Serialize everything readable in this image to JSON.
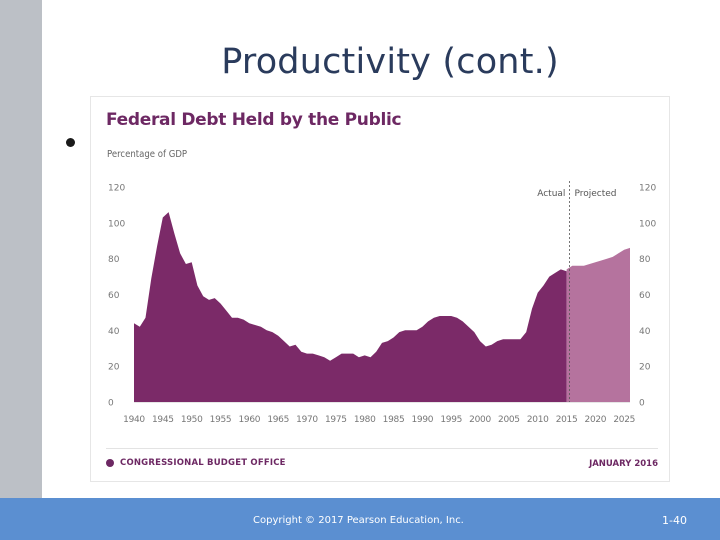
{
  "slide": {
    "title": "Productivity (cont.)",
    "copyright": "Copyright © 2017 Pearson Education, Inc.",
    "slide_number": "1-40"
  },
  "colors": {
    "actual_fill": "#7b2a68",
    "projected_fill": "#b5739e",
    "brand": "#6d2863",
    "footer_bar": "#5b8fd1"
  },
  "chart_data": {
    "type": "area",
    "title": "Federal Debt Held by the Public",
    "ylabel": "Percentage of GDP",
    "xlim": [
      1940,
      2026
    ],
    "ylim": [
      0,
      120
    ],
    "y_ticks": [
      0,
      20,
      40,
      60,
      80,
      100,
      120
    ],
    "x_ticks": [
      1940,
      1945,
      1950,
      1955,
      1960,
      1965,
      1970,
      1975,
      1980,
      1985,
      1990,
      1995,
      2000,
      2005,
      2010,
      2015,
      2020,
      2025
    ],
    "divider_year": 2015.5,
    "annotations": {
      "actual": "Actual",
      "projected": "Projected"
    },
    "source": "CONGRESSIONAL BUDGET OFFICE",
    "date": "JANUARY 2016",
    "series": [
      {
        "name": "Actual",
        "x": [
          1940,
          1941,
          1942,
          1943,
          1944,
          1945,
          1946,
          1947,
          1948,
          1949,
          1950,
          1951,
          1952,
          1953,
          1954,
          1955,
          1956,
          1957,
          1958,
          1959,
          1960,
          1961,
          1962,
          1963,
          1964,
          1965,
          1966,
          1967,
          1968,
          1969,
          1970,
          1971,
          1972,
          1973,
          1974,
          1975,
          1976,
          1977,
          1978,
          1979,
          1980,
          1981,
          1982,
          1983,
          1984,
          1985,
          1986,
          1987,
          1988,
          1989,
          1990,
          1991,
          1992,
          1993,
          1994,
          1995,
          1996,
          1997,
          1998,
          1999,
          2000,
          2001,
          2002,
          2003,
          2004,
          2005,
          2006,
          2007,
          2008,
          2009,
          2010,
          2011,
          2012,
          2013,
          2014,
          2015
        ],
        "values": [
          44,
          42,
          47,
          69,
          87,
          103,
          106,
          94,
          83,
          77,
          78,
          65,
          59,
          57,
          58,
          55,
          51,
          47,
          47,
          46,
          44,
          43,
          42,
          40,
          39,
          37,
          34,
          31,
          32,
          28,
          27,
          27,
          26,
          25,
          23,
          25,
          27,
          27,
          27,
          25,
          26,
          25,
          28,
          33,
          34,
          36,
          39,
          40,
          40,
          40,
          42,
          45,
          47,
          48,
          48,
          48,
          47,
          45,
          42,
          39,
          34,
          31,
          32,
          34,
          35,
          35,
          35,
          35,
          39,
          52,
          61,
          65,
          70,
          72,
          74,
          73
        ]
      },
      {
        "name": "Projected",
        "x": [
          2015,
          2016,
          2017,
          2018,
          2019,
          2020,
          2021,
          2022,
          2023,
          2024,
          2025,
          2026
        ],
        "values": [
          74,
          76,
          76,
          76,
          77,
          78,
          79,
          80,
          81,
          83,
          85,
          86
        ]
      }
    ]
  }
}
